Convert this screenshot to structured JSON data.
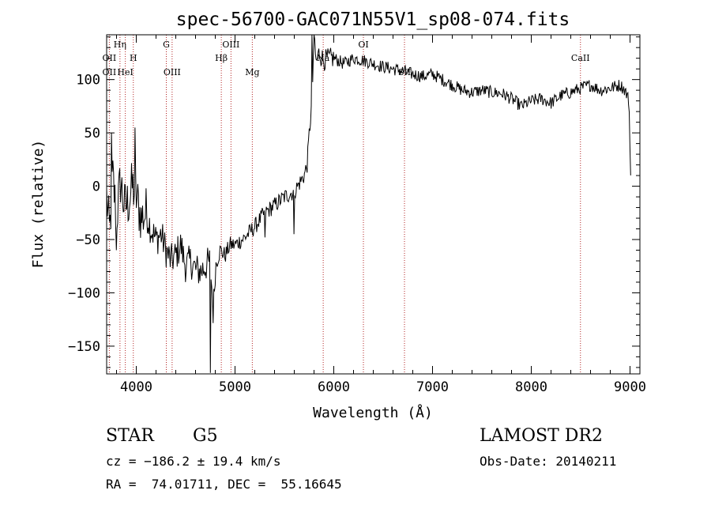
{
  "chart_data": {
    "type": "line",
    "title": "spec-56700-GAC071N55V1_sp08-074.fits",
    "xlabel": "Wavelength (Å)",
    "ylabel": "Flux (relative)",
    "xlim": [
      3700,
      9100
    ],
    "ylim": [
      -176,
      142
    ],
    "xticks": [
      4000,
      5000,
      6000,
      7000,
      8000,
      9000
    ],
    "yticks": [
      -150,
      -100,
      -50,
      0,
      50,
      100
    ],
    "ytick_labels": [
      "−150",
      "−100",
      "−50",
      "0",
      "50",
      "100"
    ],
    "grid": false,
    "series": [
      {
        "color": "#000000",
        "x": [
          3700,
          3730,
          3760,
          3800,
          3840,
          3880,
          3920,
          3960,
          4000,
          4050,
          4100,
          4150,
          4200,
          4250,
          4300,
          4350,
          4400,
          4450,
          4500,
          4550,
          4600,
          4650,
          4700,
          4750,
          4780,
          4800,
          4850,
          4900,
          4950,
          5000,
          5100,
          5200,
          5300,
          5400,
          5500,
          5600,
          5700,
          5730,
          5760,
          5780,
          5800,
          5820,
          5850,
          5900,
          5950,
          6000,
          6100,
          6200,
          6300,
          6400,
          6500,
          6600,
          6700,
          6800,
          6900,
          7000,
          7100,
          7200,
          7300,
          7400,
          7500,
          7600,
          7700,
          7800,
          7900,
          8000,
          8100,
          8200,
          8300,
          8400,
          8500,
          8600,
          8700,
          8800,
          8900,
          8950,
          8990,
          9000,
          9010
        ],
        "y": [
          -10,
          -45,
          10,
          -30,
          5,
          -20,
          -15,
          0,
          -10,
          -30,
          -25,
          -40,
          -50,
          -45,
          -60,
          -70,
          -65,
          -55,
          -75,
          -70,
          -78,
          -80,
          -75,
          -70,
          -120,
          -75,
          -60,
          -65,
          -55,
          -55,
          -48,
          -38,
          -25,
          -18,
          -10,
          -5,
          10,
          20,
          60,
          80,
          145,
          115,
          125,
          118,
          120,
          120,
          115,
          120,
          118,
          115,
          112,
          110,
          108,
          105,
          103,
          105,
          100,
          95,
          90,
          88,
          90,
          88,
          87,
          82,
          75,
          80,
          82,
          78,
          85,
          88,
          92,
          95,
          90,
          92,
          95,
          90,
          80,
          30,
          0
        ],
        "spikes": [
          {
            "x": 3750,
            "y": 50
          },
          {
            "x": 3800,
            "y": -60
          },
          {
            "x": 3990,
            "y": 55
          },
          {
            "x": 4750,
            "y": -175
          },
          {
            "x": 5300,
            "y": -48
          },
          {
            "x": 5600,
            "y": -45
          },
          {
            "x": 5780,
            "y": 145
          }
        ]
      }
    ],
    "spectral_lines": [
      {
        "wavelength": 3727,
        "label": "OII",
        "row": 1
      },
      {
        "wavelength": 3727,
        "label": "OII",
        "row": 2
      },
      {
        "wavelength": 3835,
        "label": "Hη",
        "row": 0
      },
      {
        "wavelength": 3889,
        "label": "HeI",
        "row": 2
      },
      {
        "wavelength": 3970,
        "label": "H",
        "row": 1
      },
      {
        "wavelength": 4304,
        "label": "G",
        "row": 0
      },
      {
        "wavelength": 4363,
        "label": "OIII",
        "row": 2
      },
      {
        "wavelength": 4861,
        "label": "Hβ",
        "row": 1
      },
      {
        "wavelength": 4959,
        "label": "OIII",
        "row": 0
      },
      {
        "wavelength": 5175,
        "label": "Mg",
        "row": 2
      },
      {
        "wavelength": 5893,
        "label": "Na",
        "row": 1
      },
      {
        "wavelength": 6300,
        "label": "OI",
        "row": 0
      },
      {
        "wavelength": 6716,
        "label": "SII",
        "row": 2
      },
      {
        "wavelength": 8498,
        "label": "CaII",
        "row": 1
      }
    ],
    "line_marker_color": "#b22222"
  },
  "info": {
    "class": "STAR",
    "subclass": "G5",
    "survey": "LAMOST DR2",
    "cz": "cz = −186.2 ± 19.4 km/s",
    "obs_date": "Obs-Date: 20140211",
    "coords": "RA =  74.01711, DEC =  55.16645"
  }
}
